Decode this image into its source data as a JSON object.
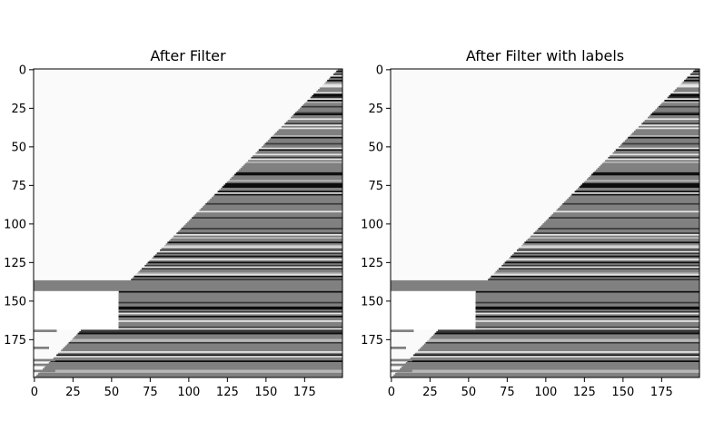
{
  "chart_data": [
    {
      "type": "heatmap",
      "title": "After Filter",
      "xlabel": "",
      "ylabel": "",
      "colormap": "gray",
      "grid": false,
      "rows": 200,
      "cols": 200,
      "xlim": [
        0,
        200
      ],
      "ylim": [
        200,
        0
      ],
      "xticks": [
        0,
        25,
        50,
        75,
        100,
        125,
        150,
        175
      ],
      "yticks": [
        0,
        25,
        50,
        75,
        100,
        125,
        150,
        175
      ],
      "triangle_boundary": {
        "row_0_col": 197,
        "row_199_col": 1
      },
      "full_width_gray_band_rows": [
        137,
        143
      ],
      "left_white_zone_rows": [
        144,
        168
      ],
      "left_marks": [
        {
          "row": 169,
          "level": 0.5,
          "to_col": 15
        },
        {
          "row": 180,
          "level": 0.5,
          "to_col": 10
        },
        {
          "row": 188,
          "level": 0.5,
          "to_col": 14
        },
        {
          "row": 191,
          "level": 0.5,
          "to_col": 12
        },
        {
          "row": 195,
          "level": 0.5,
          "to_col": 14
        }
      ]
    },
    {
      "type": "heatmap",
      "title": "After Filter with labels",
      "xlabel": "",
      "ylabel": "",
      "colormap": "gray",
      "grid": false,
      "rows": 200,
      "cols": 200,
      "xlim": [
        0,
        200
      ],
      "ylim": [
        200,
        0
      ],
      "xticks": [
        0,
        25,
        50,
        75,
        100,
        125,
        150,
        175
      ],
      "yticks": [
        0,
        25,
        50,
        75,
        100,
        125,
        150,
        175
      ],
      "triangle_boundary": {
        "row_0_col": 197,
        "row_199_col": 1
      },
      "full_width_gray_band_rows": [
        137,
        143
      ],
      "left_white_zone_rows": [
        144,
        168
      ],
      "left_marks": [
        {
          "row": 169,
          "level": 0.5,
          "to_col": 15
        },
        {
          "row": 180,
          "level": 0.5,
          "to_col": 10
        },
        {
          "row": 188,
          "level": 0.5,
          "to_col": 14
        },
        {
          "row": 191,
          "level": 0.5,
          "to_col": 12
        },
        {
          "row": 195,
          "level": 0.5,
          "to_col": 14
        }
      ]
    }
  ]
}
